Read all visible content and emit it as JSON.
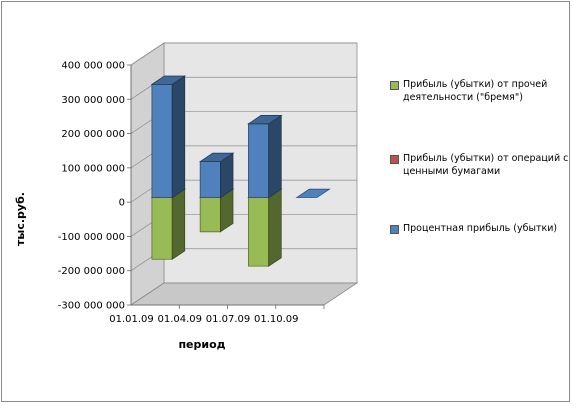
{
  "chart_data": {
    "type": "bar",
    "stacked": true,
    "three_d": true,
    "categories": [
      "01.01.09",
      "01.04.09",
      "01.07.09",
      "01.10.09"
    ],
    "series": [
      {
        "name": "Прибыль (убытки) от прочей деятельности (\"бремя\")",
        "color": "#99bb55",
        "values": [
          -180000000,
          -100000000,
          -200000000,
          0
        ]
      },
      {
        "name": "Прибыль (убытки) от операций с ценными бумагами",
        "color": "#c0504d",
        "values": [
          0,
          0,
          0,
          0
        ]
      },
      {
        "name": "Процентная прибыль (убытки)",
        "color": "#4f81bd",
        "values": [
          330000000,
          105000000,
          215000000,
          0
        ]
      }
    ],
    "xlabel": "период",
    "ylabel": "тыс.руб.",
    "ylim": [
      -300000000,
      400000000
    ],
    "yticks": [
      400000000,
      300000000,
      200000000,
      100000000,
      0,
      -100000000,
      -200000000,
      -300000000
    ],
    "ytick_labels": [
      "400 000 000",
      "300 000 000",
      "200 000 000",
      "100 000 000",
      "0",
      "-100 000 000",
      "-200 000 000",
      "-300 000 000"
    ],
    "grid": true,
    "legend": "right"
  }
}
